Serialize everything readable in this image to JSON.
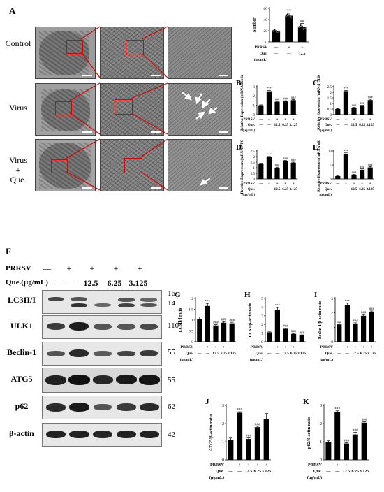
{
  "panel_letters": {
    "A": "A",
    "F": "F"
  },
  "panelA": {
    "rows": [
      "Control",
      "Virus",
      "Virus\n+\nQue."
    ]
  },
  "western": {
    "header": {
      "prrsv_label": "PRRSV",
      "que_label": "Que.(μg/mL)",
      "prrsv_marks": [
        "—",
        "+",
        "+",
        "+",
        "+"
      ],
      "que_marks": [
        "—",
        "—",
        "12.5",
        "6.25",
        "3.125"
      ]
    },
    "blots": [
      {
        "label": "LC3II/I",
        "kd": "16",
        "kd2": "14"
      },
      {
        "label": "ULK1",
        "kd": "110"
      },
      {
        "label": "Beclin-1",
        "kd": "55"
      },
      {
        "label": "ATG5",
        "kd": "55"
      },
      {
        "label": "p62",
        "kd": "62"
      },
      {
        "label": "β-actin",
        "kd": "42"
      }
    ]
  },
  "colors": {
    "bar": "#000000",
    "axis": "#000000",
    "sig": "#000000",
    "red": "#e00000"
  },
  "chart_data": [
    {
      "id": "A-number",
      "type": "bar",
      "letter": "",
      "ylabel": "Number",
      "ylim": [
        0,
        60
      ],
      "yticks": [
        0,
        20,
        40,
        60
      ],
      "values": [
        20,
        47,
        27
      ],
      "errors": [
        3,
        5,
        6
      ],
      "sig": [
        "",
        "***",
        "##"
      ],
      "scatter": true,
      "rows": [
        {
          "label": "PRRSV",
          "marks": [
            "—",
            "+",
            "+"
          ]
        },
        {
          "label": "Que.",
          "marks": [
            "—",
            "—",
            "12.5"
          ]
        },
        {
          "label": "(μg/mL)",
          "marks": [
            "",
            "",
            ""
          ]
        }
      ]
    },
    {
      "id": "B",
      "type": "bar",
      "letter": "B",
      "ylabel": "Relative Expression (mRNA Beclin-1)",
      "ylim": [
        0,
        3
      ],
      "yticks": [
        0,
        1,
        2,
        3
      ],
      "values": [
        1.0,
        2.5,
        1.38,
        1.42,
        1.55
      ],
      "errors": [
        0.05,
        0.08,
        0.06,
        0.07,
        0.06
      ],
      "sig": [
        "",
        "***",
        "###",
        "###",
        "###"
      ],
      "rows": [
        {
          "label": "PRRSV",
          "marks": [
            "—",
            "+",
            "+",
            "+",
            "+"
          ]
        },
        {
          "label": "Que.",
          "marks": [
            "—",
            "—",
            "12.5",
            "6.25",
            "3.125"
          ]
        },
        {
          "label": "(μg/mL)",
          "marks": [
            "",
            "",
            "",
            "",
            ""
          ]
        }
      ]
    },
    {
      "id": "C",
      "type": "bar",
      "letter": "C",
      "ylabel": "Relative Expression (mRNA ULK1)",
      "ylim": [
        0,
        2.5
      ],
      "yticks": [
        0,
        0.5,
        1.0,
        1.5,
        2.0,
        2.5
      ],
      "values": [
        0.5,
        2.1,
        0.6,
        0.8,
        1.3
      ],
      "errors": [
        0.04,
        0.06,
        0.05,
        0.05,
        0.08
      ],
      "sig": [
        "",
        "***",
        "###",
        "###",
        "###"
      ],
      "rows": [
        {
          "label": "PRRSV",
          "marks": [
            "—",
            "+",
            "+",
            "+",
            "+"
          ]
        },
        {
          "label": "Que.",
          "marks": [
            "—",
            "—",
            "12.5",
            "6.25",
            "3.125"
          ]
        },
        {
          "label": "(μg/mL)",
          "marks": [
            "",
            "",
            "",
            "",
            ""
          ]
        }
      ]
    },
    {
      "id": "D",
      "type": "bar",
      "letter": "D",
      "ylabel": "Relative Expression (mRNA ATG5)",
      "ylim": [
        0,
        2.5
      ],
      "yticks": [
        0,
        0.5,
        1.0,
        1.5,
        2.0,
        2.5
      ],
      "values": [
        1.35,
        1.95,
        1.0,
        1.6,
        1.45
      ],
      "errors": [
        0.05,
        0.06,
        0.05,
        0.05,
        0.05
      ],
      "sig": [
        "",
        "***",
        "###",
        "###",
        "###"
      ],
      "rows": [
        {
          "label": "PRRSV",
          "marks": [
            "—",
            "+",
            "+",
            "+",
            "+"
          ]
        },
        {
          "label": "Que.",
          "marks": [
            "—",
            "—",
            "12.5",
            "6.25",
            "3.125"
          ]
        },
        {
          "label": "(μg/mL)",
          "marks": [
            "",
            "",
            "",
            "",
            ""
          ]
        }
      ]
    },
    {
      "id": "E",
      "type": "bar",
      "letter": "E",
      "ylabel": "Relative Expression (mRNA p62)",
      "ylim": [
        0,
        10
      ],
      "yticks": [
        0,
        5,
        10
      ],
      "values": [
        1.0,
        9.0,
        1.4,
        3.3,
        4.1
      ],
      "errors": [
        0.2,
        0.3,
        0.2,
        0.3,
        0.3
      ],
      "sig": [
        "",
        "***",
        "###",
        "###",
        "###"
      ],
      "rows": [
        {
          "label": "PRRSV",
          "marks": [
            "—",
            "+",
            "+",
            "+",
            "+"
          ]
        },
        {
          "label": "Que.",
          "marks": [
            "—",
            "—",
            "12.5",
            "6.25",
            "3.125"
          ]
        },
        {
          "label": "(μg/mL)",
          "marks": [
            "",
            "",
            "",
            "",
            ""
          ]
        }
      ]
    },
    {
      "id": "G",
      "type": "bar",
      "letter": "G",
      "ylabel": "LC3Ⅱ/Ⅰ ratio",
      "ylim": [
        0,
        2.0
      ],
      "yticks": [
        0,
        0.5,
        1.0,
        1.5,
        2.0
      ],
      "values": [
        1.05,
        1.65,
        0.75,
        0.88,
        0.85
      ],
      "errors": [
        0.1,
        0.12,
        0.04,
        0.05,
        0.05
      ],
      "sig": [
        "",
        "***",
        "###",
        "###",
        "###"
      ],
      "rows": [
        {
          "label": "PRRSV",
          "marks": [
            "—",
            "+",
            "+",
            "+",
            "+"
          ]
        },
        {
          "label": "Que.",
          "marks": [
            "—",
            "—",
            "12.5",
            "6.25",
            "3.125"
          ]
        },
        {
          "label": "(μg/mL)",
          "marks": [
            "",
            "",
            "",
            "",
            ""
          ]
        }
      ]
    },
    {
      "id": "H",
      "type": "bar",
      "letter": "H",
      "ylabel": "ULK1/β-actin ratio",
      "ylim": [
        0,
        5
      ],
      "yticks": [
        0,
        1,
        2,
        3,
        4,
        5
      ],
      "values": [
        1.1,
        3.7,
        1.5,
        0.9,
        0.75
      ],
      "errors": [
        0.1,
        0.25,
        0.08,
        0.06,
        0.05
      ],
      "sig": [
        "",
        "***",
        "###",
        "###",
        "###"
      ],
      "rows": [
        {
          "label": "PRRSV",
          "marks": [
            "—",
            "+",
            "+",
            "+",
            "+"
          ]
        },
        {
          "label": "Que.",
          "marks": [
            "—",
            "—",
            "12.5",
            "6.25",
            "3.125"
          ]
        },
        {
          "label": "(μg/mL)",
          "marks": [
            "",
            "",
            "",
            "",
            ""
          ]
        }
      ]
    },
    {
      "id": "I",
      "type": "bar",
      "letter": "I",
      "ylabel": "Beclin-1/β-actin ratio",
      "ylim": [
        0,
        3
      ],
      "yticks": [
        0,
        1,
        2,
        3
      ],
      "values": [
        1.2,
        2.55,
        1.25,
        1.8,
        2.05
      ],
      "errors": [
        0.15,
        0.12,
        0.06,
        0.08,
        0.08
      ],
      "sig": [
        "",
        "***",
        "###",
        "###",
        "###"
      ],
      "rows": [
        {
          "label": "PRRSV",
          "marks": [
            "—",
            "+",
            "+",
            "+",
            "+"
          ]
        },
        {
          "label": "Que.",
          "marks": [
            "—",
            "—",
            "12.5",
            "6.25",
            "3.125"
          ]
        },
        {
          "label": "(μg/mL)",
          "marks": [
            "",
            "",
            "",
            "",
            ""
          ]
        }
      ]
    },
    {
      "id": "J",
      "type": "bar",
      "letter": "J",
      "ylabel": "ATG5/β-actin ratio",
      "ylim": [
        0,
        3
      ],
      "yticks": [
        0,
        1,
        2,
        3
      ],
      "values": [
        1.1,
        2.6,
        1.15,
        1.8,
        2.25
      ],
      "errors": [
        0.1,
        0.05,
        0.06,
        0.05,
        0.3
      ],
      "sig": [
        "",
        "***",
        "###",
        "###",
        ""
      ],
      "rows": [
        {
          "label": "PRRSV",
          "marks": [
            "—",
            "+",
            "+",
            "+",
            "+"
          ]
        },
        {
          "label": "Que.",
          "marks": [
            "—",
            "—",
            "12.5",
            "6.25",
            "3.125"
          ]
        },
        {
          "label": "(μg/mL)",
          "marks": [
            "",
            "",
            "",
            "",
            ""
          ]
        }
      ]
    },
    {
      "id": "K",
      "type": "bar",
      "letter": "K",
      "ylabel": "p62/β-actin ratio",
      "ylim": [
        0,
        3
      ],
      "yticks": [
        0,
        1,
        2,
        3
      ],
      "values": [
        1.0,
        2.65,
        0.9,
        1.4,
        2.05
      ],
      "errors": [
        0.05,
        0.05,
        0.04,
        0.12,
        0.05
      ],
      "sig": [
        "",
        "***",
        "###",
        "###",
        "###"
      ],
      "rows": [
        {
          "label": "PRRSV",
          "marks": [
            "—",
            "+",
            "+",
            "+",
            "+"
          ]
        },
        {
          "label": "Que.",
          "marks": [
            "—",
            "—",
            "12.5",
            "6.25",
            "3.125"
          ]
        },
        {
          "label": "(μg/mL)",
          "marks": [
            "",
            "",
            "",
            "",
            ""
          ]
        }
      ]
    }
  ]
}
